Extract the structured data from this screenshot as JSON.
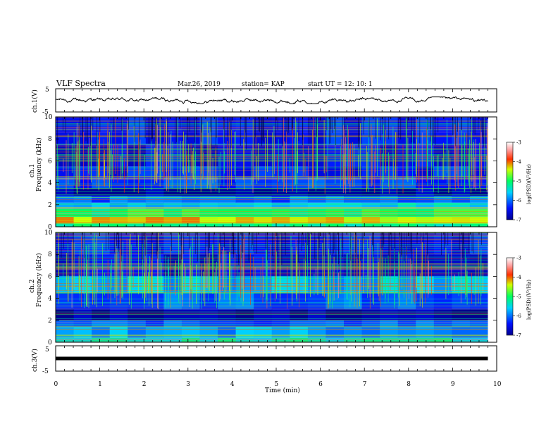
{
  "header": {
    "title": "VLF Spectra",
    "date": "Mar.26, 2019",
    "station": "station= KAP",
    "start_ut": "start  UT =   12: 10: 1"
  },
  "chart_data": [
    {
      "type": "line",
      "panel": "ch1-waveform",
      "ylabel": "ch.1(V)",
      "ylim": [
        -5,
        5
      ],
      "yticks": [
        "5",
        "-5"
      ],
      "xlim": [
        0,
        10
      ],
      "color": "#000000",
      "description_values": {
        "x_range": [
          0,
          9.8
        ],
        "y_range": [
          -1.5,
          1.5
        ]
      }
    },
    {
      "type": "heatmap",
      "panel": "ch1-spectrogram",
      "ylabel_line1": "ch.1",
      "ylabel_line2": "Frequency (kHz)",
      "ylim": [
        0,
        10
      ],
      "yticks": [
        "0",
        "2",
        "4",
        "6",
        "8",
        "10"
      ],
      "xlim": [
        0,
        10
      ],
      "data_x_max": 9.8,
      "colorbar": {
        "label": "log(PSD)(V²/Hz)",
        "range": [
          -7,
          -3
        ],
        "ticks": [
          "-3",
          "-4",
          "-5",
          "-6",
          "-7"
        ]
      },
      "bands": [
        {
          "f": [
            0.0,
            0.3
          ],
          "level": -5.2
        },
        {
          "f": [
            0.3,
            0.9
          ],
          "level": -4.3
        },
        {
          "f": [
            0.9,
            1.6
          ],
          "level": -5.0
        },
        {
          "f": [
            1.6,
            2.2
          ],
          "level": -5.6
        },
        {
          "f": [
            2.2,
            2.8
          ],
          "level": -6.1
        },
        {
          "f": [
            2.8,
            3.5
          ],
          "level": -6.9
        },
        {
          "f": [
            3.5,
            4.5
          ],
          "level": -6.2
        },
        {
          "f": [
            4.5,
            5.5
          ],
          "level": -6.4
        },
        {
          "f": [
            5.5,
            7.5
          ],
          "level": -6.5
        },
        {
          "f": [
            7.5,
            10.0
          ],
          "level": -6.4
        }
      ]
    },
    {
      "type": "heatmap",
      "panel": "ch2-spectrogram",
      "ylabel_line1": "ch.2",
      "ylabel_line2": "Frequency (kHz)",
      "ylim": [
        0,
        10
      ],
      "yticks": [
        "0",
        "2",
        "4",
        "6",
        "8",
        "10"
      ],
      "xlim": [
        0,
        10
      ],
      "data_x_max": 9.8,
      "colorbar": {
        "label": "log(PSD)(V²/Hz)",
        "range": [
          -7,
          -3
        ],
        "ticks": [
          "-3",
          "-4",
          "-5",
          "-6",
          "-7"
        ]
      },
      "bands": [
        {
          "f": [
            0.0,
            0.4
          ],
          "level": -5.4
        },
        {
          "f": [
            0.4,
            1.4
          ],
          "level": -5.8
        },
        {
          "f": [
            1.4,
            2.0
          ],
          "level": -6.1
        },
        {
          "f": [
            2.0,
            3.0
          ],
          "level": -6.9
        },
        {
          "f": [
            3.0,
            4.5
          ],
          "level": -6.1
        },
        {
          "f": [
            4.5,
            6.0
          ],
          "level": -5.7
        },
        {
          "f": [
            6.0,
            8.0
          ],
          "level": -6.6
        },
        {
          "f": [
            8.0,
            10.0
          ],
          "level": -6.4
        }
      ]
    },
    {
      "type": "line",
      "panel": "ch3-waveform",
      "ylabel": "ch.3(V)",
      "ylim": [
        -5,
        5
      ],
      "yticks": [
        "5",
        "-5"
      ],
      "xlim": [
        0,
        10
      ],
      "xlabel": "Time  (min)",
      "xticks": [
        "0",
        "1",
        "2",
        "3",
        "4",
        "5",
        "6",
        "7",
        "8",
        "9",
        "10"
      ],
      "constant_value": 0,
      "color": "#000000"
    }
  ]
}
